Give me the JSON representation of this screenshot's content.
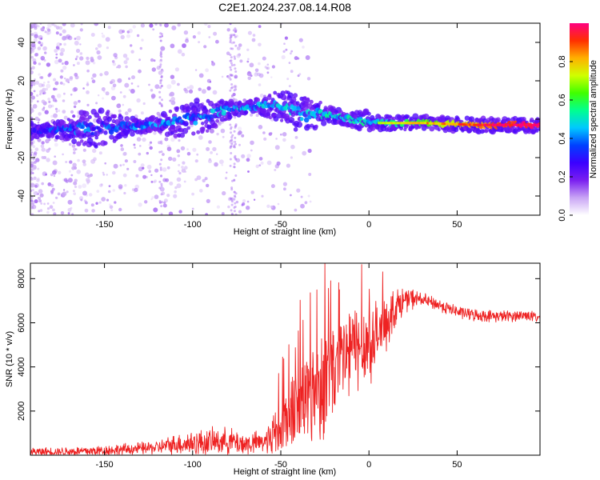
{
  "title": "C2E1.2024.237.08.14.R08",
  "chart_data": [
    {
      "type": "heatmap",
      "name": "spectrogram",
      "xlabel": "Height of straight line (km)",
      "ylabel": "Frequency (Hz)",
      "xlim": [
        -192,
        97
      ],
      "ylim": [
        -50,
        50
      ],
      "xticks": [
        -150,
        -100,
        -50,
        0,
        50
      ],
      "yticks": [
        -40,
        -20,
        0,
        20,
        40
      ],
      "xtick_labels": [
        "-150",
        "-100",
        "-50",
        "0",
        "50"
      ],
      "ytick_labels": [
        "-40",
        "-20",
        "0",
        "20",
        "40"
      ],
      "ridge": {
        "x": [
          -192,
          -160,
          -130,
          -110,
          -95,
          -80,
          -70,
          -60,
          -50,
          -45,
          -40,
          -35,
          -30,
          -20,
          -10,
          0,
          10,
          30,
          60,
          80,
          97
        ],
        "y": [
          -6,
          -5,
          -3.5,
          -2,
          1,
          5,
          6,
          7,
          7,
          6,
          3,
          2,
          3,
          2,
          0,
          -2,
          -2,
          -2,
          -3,
          -3,
          -3
        ]
      },
      "colorbar": {
        "label": "Normalized spectral amplitude",
        "range": [
          0,
          1
        ],
        "ticks": [
          0.0,
          0.2,
          0.4,
          0.6,
          0.8
        ],
        "tick_labels": [
          "0.0",
          "0.2",
          "0.4",
          "0.6",
          "0.8"
        ],
        "colors": [
          "#ffffff",
          "#c9a5f5",
          "#7a1ff0",
          "#3b00ff",
          "#0040ff",
          "#00c8ff",
          "#00ff90",
          "#40ff00",
          "#d0ff00",
          "#ffb000",
          "#ff3000",
          "#ff0080"
        ]
      }
    },
    {
      "type": "line",
      "name": "snr",
      "xlabel": "Height of straight line (km)",
      "ylabel": "SNR (10 * v/v)",
      "xlim": [
        -192,
        97
      ],
      "ylim": [
        0,
        8700
      ],
      "xticks": [
        -150,
        -100,
        -50,
        0,
        50
      ],
      "yticks": [
        2000,
        4000,
        6000,
        8000
      ],
      "xtick_labels": [
        "-150",
        "-100",
        "-50",
        "0",
        "50"
      ],
      "ytick_labels": [
        "2000",
        "4000",
        "6000",
        "8000"
      ],
      "color": "#ee2222",
      "envelope": {
        "x": [
          -192,
          -160,
          -140,
          -120,
          -110,
          -100,
          -90,
          -80,
          -70,
          -60,
          -55,
          -50,
          -45,
          -40,
          -35,
          -30,
          -25,
          -20,
          -15,
          -10,
          -5,
          0,
          5,
          10,
          15,
          20,
          25,
          30,
          40,
          50,
          60,
          70,
          80,
          90,
          97
        ],
        "y": [
          150,
          180,
          250,
          350,
          500,
          550,
          600,
          650,
          500,
          600,
          900,
          1300,
          1800,
          2300,
          2700,
          3100,
          3500,
          3800,
          4300,
          4800,
          5000,
          5100,
          5400,
          6100,
          6700,
          7000,
          7100,
          7050,
          6800,
          6500,
          6350,
          6300,
          6300,
          6350,
          6200
        ]
      },
      "amplitude": {
        "x": [
          -192,
          -120,
          -100,
          -80,
          -60,
          -55,
          -50,
          -40,
          -30,
          -20,
          -10,
          0,
          10,
          20,
          30,
          97
        ],
        "y": [
          150,
          250,
          500,
          500,
          400,
          800,
          1200,
          1800,
          2200,
          2200,
          1800,
          1500,
          1000,
          500,
          250,
          200
        ]
      }
    }
  ]
}
